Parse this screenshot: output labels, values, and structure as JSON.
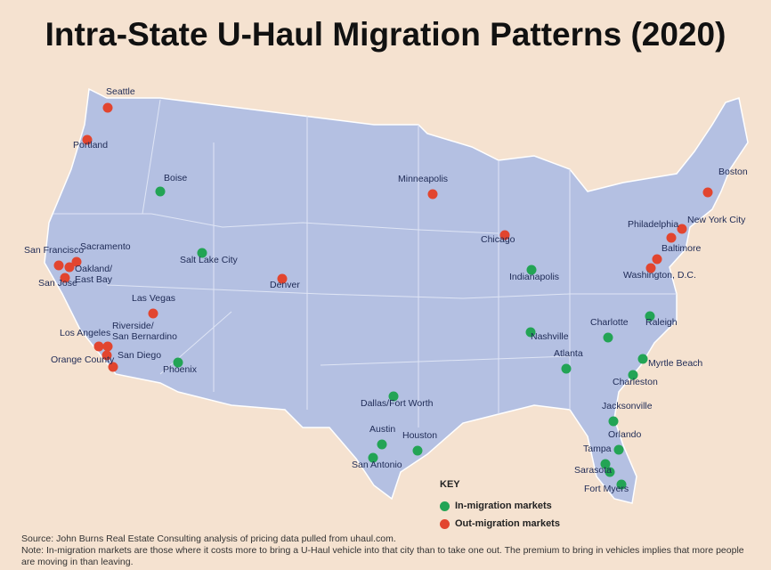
{
  "title": "Intra-State U-Haul Migration Patterns (2020)",
  "key": "KEY",
  "markets": [
    {
      "label": "In-migration markets",
      "color": "#23a455",
      "cities": [
        "Boise",
        "Salt Lake City",
        "Phoenix",
        "Dallas/Fort Worth",
        "Austin",
        "San Antonio",
        "Houston",
        "Indianapolis",
        "Nashville",
        "Atlanta",
        "Charlotte",
        "Raleigh",
        "Myrtle Beach",
        "Charleston",
        "Jacksonville",
        "Orlando",
        "Tampa",
        "Sarasota",
        "Fort Myers"
      ]
    },
    {
      "label": "Out-migration markets",
      "color": "#e2452f",
      "cities": [
        "Seattle",
        "Portland",
        "San Francisco",
        "Sacramento",
        "Oakland/\nEast Bay",
        "San Jose",
        "Las Vegas",
        "Los Angeles",
        "Riverside/\nSan Bernardino",
        "Orange County",
        "San Diego",
        "Denver",
        "Minneapolis",
        "Chicago",
        "Boston",
        "New York City",
        "Philadelphia",
        "Baltimore",
        "Washington, D.C."
      ]
    }
  ],
  "source": "Source: John Burns Real Estate Consulting analysis of pricing data pulled from uhaul.com.",
  "note": "Note: In-migration markets are those where it costs more to bring a U-Haul vehicle into that city than to take one out. The premium to bring in vehicles implies that more people are moving in than leaving."
}
